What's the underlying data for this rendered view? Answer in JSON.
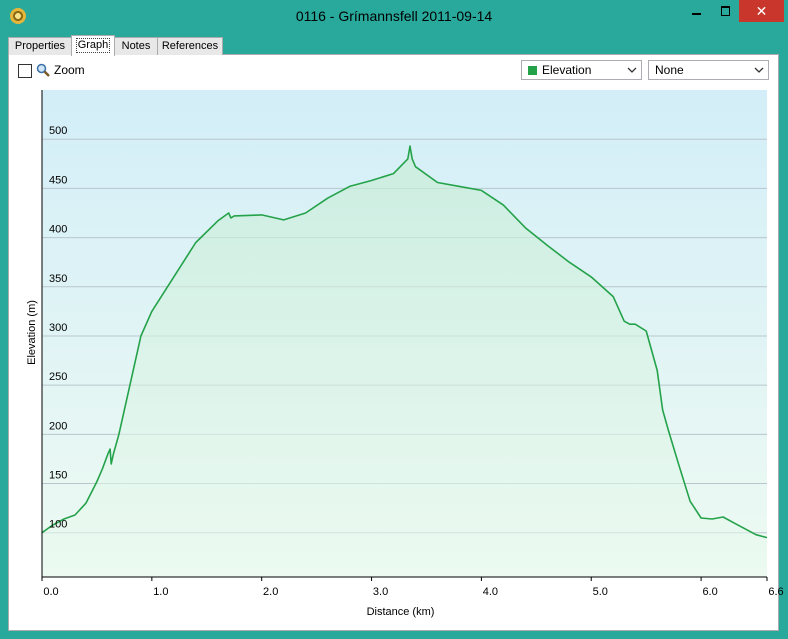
{
  "window": {
    "title": "0116 - Grímannsfell 2011-09-14",
    "close_glyph": "✕"
  },
  "tabs": [
    {
      "label": "Properties",
      "active": false
    },
    {
      "label": "Graph",
      "active": true
    },
    {
      "label": "Notes",
      "active": false
    },
    {
      "label": "References",
      "active": false
    }
  ],
  "toolbar": {
    "zoom_label": "Zoom",
    "zoom_checked": false,
    "series_select": "Elevation",
    "second_select": "None"
  },
  "colors": {
    "series": "#24a24a",
    "plot_top": "#d3eef8",
    "plot_bottom": "#eefaf2",
    "window_accent": "#29a89c"
  },
  "chart_data": {
    "type": "area",
    "xlabel": "Distance  (km)",
    "ylabel": "Elevation (m)",
    "xlim": [
      0,
      6.6
    ],
    "ylim": [
      55,
      550
    ],
    "x_ticks": [
      "0.0",
      "1.0",
      "2.0",
      "3.0",
      "4.0",
      "5.0",
      "6.0",
      "6.6"
    ],
    "y_ticks": [
      "100",
      "150",
      "200",
      "250",
      "300",
      "350",
      "400",
      "450",
      "500"
    ],
    "grid": true,
    "series": [
      {
        "name": "Elevation",
        "x": [
          0.0,
          0.1,
          0.2,
          0.3,
          0.4,
          0.5,
          0.55,
          0.6,
          0.62,
          0.63,
          0.65,
          0.7,
          0.8,
          0.9,
          1.0,
          1.2,
          1.4,
          1.6,
          1.7,
          1.72,
          1.75,
          2.0,
          2.2,
          2.4,
          2.6,
          2.8,
          3.0,
          3.2,
          3.33,
          3.35,
          3.37,
          3.4,
          3.6,
          3.8,
          4.0,
          4.2,
          4.4,
          4.6,
          4.8,
          5.0,
          5.2,
          5.3,
          5.35,
          5.4,
          5.5,
          5.6,
          5.65,
          5.7,
          5.8,
          5.9,
          6.0,
          6.1,
          6.2,
          6.3,
          6.4,
          6.5,
          6.6
        ],
        "y": [
          100,
          108,
          114,
          118,
          130,
          152,
          165,
          180,
          185,
          170,
          180,
          200,
          250,
          300,
          325,
          360,
          395,
          417,
          425,
          420,
          422,
          423,
          418,
          425,
          440,
          452,
          458,
          465,
          480,
          493,
          480,
          472,
          456,
          452,
          448,
          433,
          410,
          392,
          375,
          360,
          340,
          315,
          312,
          312,
          305,
          265,
          225,
          205,
          168,
          132,
          115,
          114,
          116,
          110,
          104,
          98,
          95
        ]
      }
    ]
  }
}
